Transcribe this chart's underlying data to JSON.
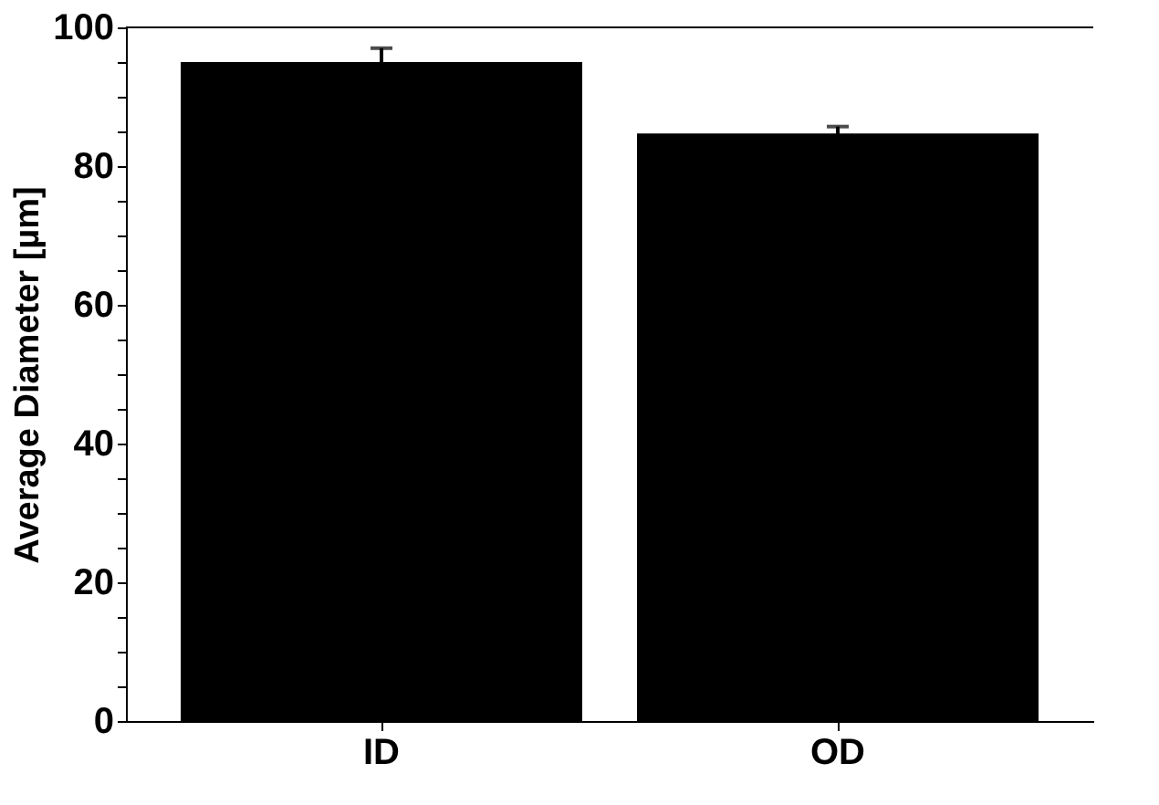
{
  "chart_data": {
    "type": "bar",
    "ylabel": "Average Diameter [µm]",
    "categories": [
      "ID",
      "OD"
    ],
    "values": [
      95,
      84.7
    ],
    "errors": [
      2,
      1
    ],
    "color": "#000000",
    "ylim": [
      0,
      100
    ],
    "yticks": [
      0,
      {
        "value": 5,
        "label": null
      },
      20,
      {
        "value": 15,
        "label": null
      },
      {
        "value": 10,
        "label": null
      },
      40,
      {
        "value": 25,
        "label": null
      },
      {
        "value": 30,
        "label": null
      },
      {
        "value": 35,
        "label": null
      },
      {
        "value": 45,
        "label": null
      },
      {
        "value": 50,
        "label": null
      },
      {
        "value": 55,
        "label": null
      },
      60,
      {
        "value": 65,
        "label": null
      },
      {
        "value": 70,
        "label": null
      },
      {
        "value": 75,
        "label": null
      },
      80,
      {
        "value": 85,
        "label": null
      },
      {
        "value": 90,
        "label": null
      },
      {
        "value": 95,
        "label": null
      },
      100
    ],
    "grid": false
  }
}
